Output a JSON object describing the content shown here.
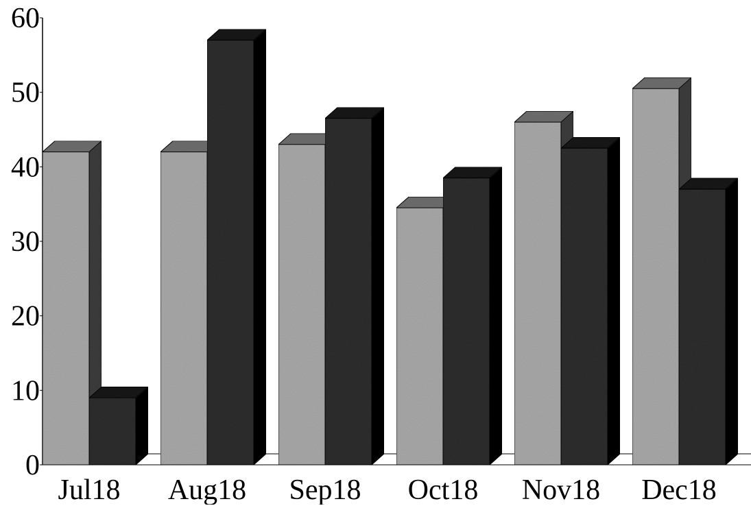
{
  "chart_data": {
    "type": "bar",
    "categories": [
      "Jul18",
      "Aug18",
      "Sep18",
      "Oct18",
      "Nov18",
      "Dec18"
    ],
    "series": [
      {
        "values": [
          42,
          42,
          43,
          34.5,
          46,
          50.5
        ]
      },
      {
        "values": [
          9,
          57,
          46.5,
          38.5,
          42.5,
          37
        ]
      }
    ],
    "y_ticks": [
      0,
      10,
      20,
      30,
      40,
      50,
      60
    ],
    "ylim": [
      0,
      60
    ],
    "grid": false,
    "legend": "none",
    "style": "3d-clustered-bar",
    "colors": {
      "series_1_front": "#a9a9a9",
      "series_1_side": "#3c3c3c",
      "series_1_top": "#6e6e6e",
      "series_2_front": "#2e2e2e",
      "series_2_side": "#050505",
      "series_2_top": "#141414"
    }
  }
}
